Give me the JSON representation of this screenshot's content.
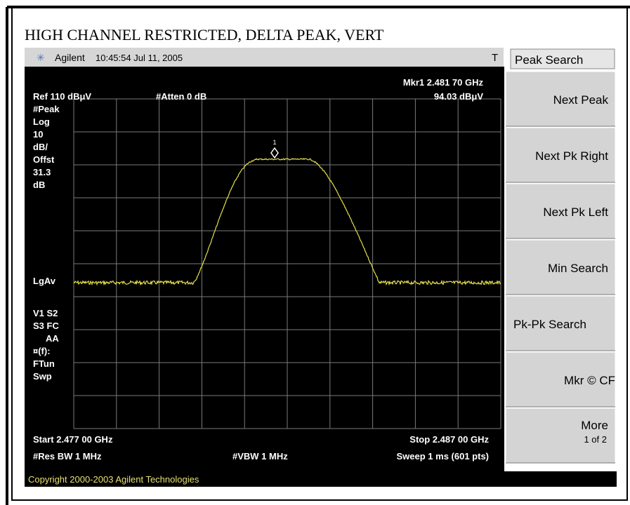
{
  "title": "HIGH CHANNEL RESTRICTED, DELTA PEAK, VERT",
  "header": {
    "brand": "Agilent",
    "timestamp": "10:45:54  Jul 11, 2005",
    "flag": "T"
  },
  "menu": {
    "title": "Peak Search",
    "keys": [
      "Next Peak",
      "Next Pk Right",
      "Next Pk Left",
      "Min Search",
      "Pk-Pk Search",
      "Mkr © CF"
    ],
    "more": "More",
    "more_page": "1 of 2"
  },
  "display": {
    "marker": "Mkr1  2.481 70 GHz",
    "marker_level": "94.03 dBμV",
    "ref": "Ref 110 dBμV",
    "atten": "#Atten 0 dB",
    "marker_id": "1",
    "left_labels": [
      "#Peak",
      "Log",
      "10",
      "dB/",
      "Offst",
      "31.3",
      "dB"
    ],
    "lgav": "LgAv",
    "status_labels": [
      "V1  S2",
      "S3  FC",
      "AA",
      "¤(f):",
      "FTun",
      "Swp"
    ],
    "start": "Start 2.477 00 GHz",
    "stop": "Stop 2.487 00 GHz",
    "rbw": "#Res BW 1 MHz",
    "vbw": "#VBW 1 MHz",
    "sweep": "Sweep 1 ms (601 pts)"
  },
  "footer": "Copyright 2000-2003 Agilent Technologies"
}
